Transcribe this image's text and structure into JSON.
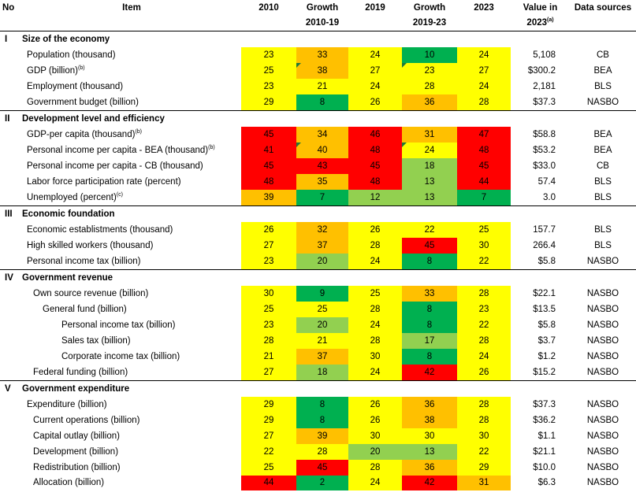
{
  "header": {
    "no": "No",
    "item": "Item",
    "y2010": "2010",
    "growth1_l1": "Growth",
    "growth1_l2": "2010-19",
    "y2019": "2019",
    "growth2_l1": "Growth",
    "growth2_l2": "2019-23",
    "y2023": "2023",
    "value_l1": "Value in",
    "value_l2": "2023",
    "value_sup": "(a)",
    "sources": "Data sources"
  },
  "sections": [
    {
      "no": "I",
      "title": "Size of the economy",
      "rows": [
        {
          "label": "Population (thousand)",
          "indent": 0,
          "cells": [
            {
              "v": "23",
              "c": "y"
            },
            {
              "v": "33",
              "c": "o"
            },
            {
              "v": "24",
              "c": "y"
            },
            {
              "v": "10",
              "c": "g"
            },
            {
              "v": "24",
              "c": "y"
            }
          ],
          "value": "5,108",
          "source": "CB"
        },
        {
          "label": "GDP (billion)",
          "sup": "(b)",
          "indent": 0,
          "cells": [
            {
              "v": "25",
              "c": "y"
            },
            {
              "v": "38",
              "c": "o",
              "tri": true
            },
            {
              "v": "27",
              "c": "y"
            },
            {
              "v": "23",
              "c": "y",
              "tri": true
            },
            {
              "v": "27",
              "c": "y"
            }
          ],
          "value": "$300.2",
          "source": "BEA"
        },
        {
          "label": "Employment (thousand)",
          "indent": 0,
          "cells": [
            {
              "v": "23",
              "c": "y"
            },
            {
              "v": "21",
              "c": "y"
            },
            {
              "v": "24",
              "c": "y"
            },
            {
              "v": "28",
              "c": "y"
            },
            {
              "v": "24",
              "c": "y"
            }
          ],
          "value": "2,181",
          "source": "BLS"
        },
        {
          "label": "Government budget (billion)",
          "indent": 0,
          "cells": [
            {
              "v": "29",
              "c": "y"
            },
            {
              "v": "8",
              "c": "g"
            },
            {
              "v": "26",
              "c": "y"
            },
            {
              "v": "36",
              "c": "o"
            },
            {
              "v": "28",
              "c": "y"
            }
          ],
          "value": "$37.3",
          "source": "NASBO"
        }
      ]
    },
    {
      "no": "II",
      "title": "Development level and efficiency",
      "rows": [
        {
          "label": "GDP-per capita (thousand)",
          "sup": "(b)",
          "indent": 0,
          "cells": [
            {
              "v": "45",
              "c": "r"
            },
            {
              "v": "34",
              "c": "o"
            },
            {
              "v": "46",
              "c": "r"
            },
            {
              "v": "31",
              "c": "o"
            },
            {
              "v": "47",
              "c": "r"
            }
          ],
          "value": "$58.8",
          "source": "BEA"
        },
        {
          "label": "Personal income per capita - BEA (thousand)",
          "sup": "(b)",
          "indent": 0,
          "cells": [
            {
              "v": "41",
              "c": "r"
            },
            {
              "v": "40",
              "c": "o",
              "tri": true
            },
            {
              "v": "48",
              "c": "r"
            },
            {
              "v": "24",
              "c": "y",
              "tri": true
            },
            {
              "v": "48",
              "c": "r"
            }
          ],
          "value": "$53.2",
          "source": "BEA"
        },
        {
          "label": "Personal income per capita - CB (thousand)",
          "indent": 0,
          "cells": [
            {
              "v": "45",
              "c": "r"
            },
            {
              "v": "43",
              "c": "r"
            },
            {
              "v": "45",
              "c": "r"
            },
            {
              "v": "18",
              "c": "lg"
            },
            {
              "v": "45",
              "c": "r"
            }
          ],
          "value": "$33.0",
          "source": "CB"
        },
        {
          "label": "Labor force participation rate (percent)",
          "indent": 0,
          "cells": [
            {
              "v": "48",
              "c": "r"
            },
            {
              "v": "35",
              "c": "o"
            },
            {
              "v": "48",
              "c": "r"
            },
            {
              "v": "13",
              "c": "lg"
            },
            {
              "v": "44",
              "c": "r"
            }
          ],
          "value": "57.4",
          "source": "BLS"
        },
        {
          "label": "Unemployed (percent)",
          "sup": "(c)",
          "indent": 0,
          "cells": [
            {
              "v": "39",
              "c": "o"
            },
            {
              "v": "7",
              "c": "g"
            },
            {
              "v": "12",
              "c": "lg"
            },
            {
              "v": "13",
              "c": "lg"
            },
            {
              "v": "7",
              "c": "g"
            }
          ],
          "value": "3.0",
          "source": "BLS"
        }
      ]
    },
    {
      "no": "III",
      "title": "Economic foundation",
      "rows": [
        {
          "label": "Economic establistments (thousand)",
          "indent": 0,
          "cells": [
            {
              "v": "26",
              "c": "y"
            },
            {
              "v": "32",
              "c": "o"
            },
            {
              "v": "26",
              "c": "y"
            },
            {
              "v": "22",
              "c": "y"
            },
            {
              "v": "25",
              "c": "y"
            }
          ],
          "value": "157.7",
          "source": "BLS"
        },
        {
          "label": "High skilled workers (thousand)",
          "indent": 0,
          "cells": [
            {
              "v": "27",
              "c": "y"
            },
            {
              "v": "37",
              "c": "o"
            },
            {
              "v": "28",
              "c": "y"
            },
            {
              "v": "45",
              "c": "r"
            },
            {
              "v": "30",
              "c": "y"
            }
          ],
          "value": "266.4",
          "source": "BLS"
        },
        {
          "label": "Personal income tax (billion)",
          "indent": 0,
          "cells": [
            {
              "v": "23",
              "c": "y"
            },
            {
              "v": "20",
              "c": "lg"
            },
            {
              "v": "24",
              "c": "y"
            },
            {
              "v": "8",
              "c": "g"
            },
            {
              "v": "22",
              "c": "y"
            }
          ],
          "value": "$5.8",
          "source": "NASBO"
        }
      ]
    },
    {
      "no": "IV",
      "title": "Government revenue",
      "rows": [
        {
          "label": "Own source revenue (billion)",
          "indent": 1,
          "cells": [
            {
              "v": "30",
              "c": "y"
            },
            {
              "v": "9",
              "c": "g"
            },
            {
              "v": "25",
              "c": "y"
            },
            {
              "v": "33",
              "c": "o"
            },
            {
              "v": "28",
              "c": "y"
            }
          ],
          "value": "$22.1",
          "source": "NASBO"
        },
        {
          "label": "General fund (billion)",
          "indent": 2,
          "cells": [
            {
              "v": "25",
              "c": "y"
            },
            {
              "v": "25",
              "c": "y"
            },
            {
              "v": "28",
              "c": "y"
            },
            {
              "v": "8",
              "c": "g"
            },
            {
              "v": "23",
              "c": "y"
            }
          ],
          "value": "$13.5",
          "source": "NASBO"
        },
        {
          "label": "Personal income tax (billion)",
          "indent": 3,
          "cells": [
            {
              "v": "23",
              "c": "y"
            },
            {
              "v": "20",
              "c": "lg"
            },
            {
              "v": "24",
              "c": "y"
            },
            {
              "v": "8",
              "c": "g"
            },
            {
              "v": "22",
              "c": "y"
            }
          ],
          "value": "$5.8",
          "source": "NASBO"
        },
        {
          "label": "Sales tax (billion)",
          "indent": 3,
          "cells": [
            {
              "v": "28",
              "c": "y"
            },
            {
              "v": "21",
              "c": "y"
            },
            {
              "v": "28",
              "c": "y"
            },
            {
              "v": "17",
              "c": "lg"
            },
            {
              "v": "28",
              "c": "y"
            }
          ],
          "value": "$3.7",
          "source": "NASBO"
        },
        {
          "label": "Corporate income tax (billion)",
          "indent": 3,
          "cells": [
            {
              "v": "21",
              "c": "y"
            },
            {
              "v": "37",
              "c": "o"
            },
            {
              "v": "30",
              "c": "y"
            },
            {
              "v": "8",
              "c": "g"
            },
            {
              "v": "24",
              "c": "y"
            }
          ],
          "value": "$1.2",
          "source": "NASBO"
        },
        {
          "label": "Federal funding (billion)",
          "indent": 1,
          "cells": [
            {
              "v": "27",
              "c": "y"
            },
            {
              "v": "18",
              "c": "lg"
            },
            {
              "v": "24",
              "c": "y"
            },
            {
              "v": "42",
              "c": "r"
            },
            {
              "v": "26",
              "c": "y"
            }
          ],
          "value": "$15.2",
          "source": "NASBO"
        }
      ]
    },
    {
      "no": "V",
      "title": "Government expenditure",
      "rows": [
        {
          "label": "Expenditure (billion)",
          "indent": 0,
          "cells": [
            {
              "v": "29",
              "c": "y"
            },
            {
              "v": "8",
              "c": "g"
            },
            {
              "v": "26",
              "c": "y"
            },
            {
              "v": "36",
              "c": "o"
            },
            {
              "v": "28",
              "c": "y"
            }
          ],
          "value": "$37.3",
          "source": "NASBO"
        },
        {
          "label": "Current operations (billion)",
          "indent": 1,
          "cells": [
            {
              "v": "29",
              "c": "y"
            },
            {
              "v": "8",
              "c": "g"
            },
            {
              "v": "26",
              "c": "y"
            },
            {
              "v": "38",
              "c": "o"
            },
            {
              "v": "28",
              "c": "y"
            }
          ],
          "value": "$36.2",
          "source": "NASBO"
        },
        {
          "label": "Capital outlay (billion)",
          "indent": 1,
          "cells": [
            {
              "v": "27",
              "c": "y"
            },
            {
              "v": "39",
              "c": "o"
            },
            {
              "v": "30",
              "c": "y"
            },
            {
              "v": "30",
              "c": "y"
            },
            {
              "v": "30",
              "c": "y"
            }
          ],
          "value": "$1.1",
          "source": "NASBO"
        },
        {
          "label": "Development (billion)",
          "indent": 1,
          "cells": [
            {
              "v": "22",
              "c": "y"
            },
            {
              "v": "28",
              "c": "y"
            },
            {
              "v": "20",
              "c": "lg"
            },
            {
              "v": "13",
              "c": "lg"
            },
            {
              "v": "22",
              "c": "y"
            }
          ],
          "value": "$21.1",
          "source": "NASBO"
        },
        {
          "label": "Redistribution (billion)",
          "indent": 1,
          "cells": [
            {
              "v": "25",
              "c": "y"
            },
            {
              "v": "45",
              "c": "r"
            },
            {
              "v": "28",
              "c": "y"
            },
            {
              "v": "36",
              "c": "o"
            },
            {
              "v": "29",
              "c": "y"
            }
          ],
          "value": "$10.0",
          "source": "NASBO"
        },
        {
          "label": "Allocation (billion)",
          "indent": 1,
          "cells": [
            {
              "v": "44",
              "c": "r"
            },
            {
              "v": "2",
              "c": "g"
            },
            {
              "v": "24",
              "c": "y"
            },
            {
              "v": "42",
              "c": "r"
            },
            {
              "v": "31",
              "c": "o"
            }
          ],
          "value": "$6.3",
          "source": "NASBO"
        }
      ]
    }
  ]
}
